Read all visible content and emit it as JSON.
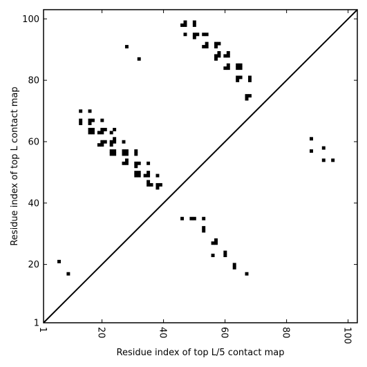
{
  "chart_data": {
    "type": "scatter",
    "xlabel": "Residue index of top L/5 contact map",
    "ylabel": "Residue index of top L contact map",
    "xlim": [
      1,
      103
    ],
    "ylim": [
      1,
      103
    ],
    "grid": false,
    "x_ticks": [
      1,
      20,
      40,
      60,
      80,
      100
    ],
    "y_ticks": [
      1,
      20,
      40,
      60,
      80,
      100
    ],
    "diagonal": true,
    "marker_color": "#000000",
    "series": [
      {
        "values": [
          [
            46,
            98
          ],
          [
            47,
            98
          ],
          [
            47,
            99
          ],
          [
            50,
            98
          ],
          [
            50,
            99
          ],
          [
            47,
            95
          ],
          [
            50,
            94
          ],
          [
            50,
            95
          ],
          [
            51,
            95
          ],
          [
            53,
            95
          ],
          [
            54,
            95
          ],
          [
            53,
            91
          ],
          [
            54,
            91
          ],
          [
            54,
            92
          ],
          [
            57,
            91
          ],
          [
            57,
            92
          ],
          [
            58,
            92
          ],
          [
            28,
            91
          ],
          [
            32,
            87
          ],
          [
            57,
            87
          ],
          [
            57,
            88
          ],
          [
            58,
            88
          ],
          [
            58,
            89
          ],
          [
            60,
            88
          ],
          [
            61,
            88
          ],
          [
            61,
            89
          ],
          [
            64,
            84
          ],
          [
            64,
            85
          ],
          [
            65,
            84
          ],
          [
            65,
            85
          ],
          [
            60,
            84
          ],
          [
            61,
            84
          ],
          [
            61,
            85
          ],
          [
            64,
            80
          ],
          [
            64,
            81
          ],
          [
            65,
            81
          ],
          [
            68,
            80
          ],
          [
            68,
            81
          ],
          [
            67,
            74
          ],
          [
            67,
            75
          ],
          [
            68,
            75
          ],
          [
            13,
            70
          ],
          [
            16,
            70
          ],
          [
            13,
            66
          ],
          [
            13,
            67
          ],
          [
            16,
            66
          ],
          [
            16,
            67
          ],
          [
            17,
            67
          ],
          [
            16,
            63
          ],
          [
            16,
            64
          ],
          [
            17,
            63
          ],
          [
            17,
            64
          ],
          [
            20,
            67
          ],
          [
            19,
            63
          ],
          [
            20,
            63
          ],
          [
            20,
            64
          ],
          [
            21,
            64
          ],
          [
            23,
            63
          ],
          [
            24,
            64
          ],
          [
            19,
            59
          ],
          [
            20,
            59
          ],
          [
            20,
            60
          ],
          [
            21,
            60
          ],
          [
            23,
            59
          ],
          [
            23,
            60
          ],
          [
            24,
            60
          ],
          [
            24,
            61
          ],
          [
            23,
            56
          ],
          [
            23,
            57
          ],
          [
            24,
            56
          ],
          [
            24,
            57
          ],
          [
            27,
            60
          ],
          [
            27,
            56
          ],
          [
            27,
            57
          ],
          [
            28,
            56
          ],
          [
            28,
            57
          ],
          [
            31,
            56
          ],
          [
            31,
            57
          ],
          [
            27,
            53
          ],
          [
            28,
            53
          ],
          [
            28,
            54
          ],
          [
            31,
            52
          ],
          [
            31,
            53
          ],
          [
            32,
            53
          ],
          [
            35,
            53
          ],
          [
            31,
            49
          ],
          [
            31,
            50
          ],
          [
            32,
            49
          ],
          [
            32,
            50
          ],
          [
            34,
            49
          ],
          [
            35,
            49
          ],
          [
            35,
            50
          ],
          [
            38,
            49
          ],
          [
            35,
            46
          ],
          [
            35,
            47
          ],
          [
            36,
            46
          ],
          [
            38,
            45
          ],
          [
            38,
            46
          ],
          [
            39,
            46
          ],
          [
            88,
            61
          ],
          [
            88,
            57
          ],
          [
            92,
            58
          ],
          [
            92,
            54
          ],
          [
            95,
            54
          ],
          [
            46,
            35
          ],
          [
            49,
            35
          ],
          [
            50,
            35
          ],
          [
            53,
            35
          ],
          [
            53,
            31
          ],
          [
            53,
            32
          ],
          [
            56,
            27
          ],
          [
            57,
            27
          ],
          [
            57,
            28
          ],
          [
            60,
            23
          ],
          [
            60,
            24
          ],
          [
            56,
            23
          ],
          [
            63,
            19
          ],
          [
            63,
            20
          ],
          [
            67,
            17
          ],
          [
            6,
            21
          ],
          [
            9,
            17
          ]
        ]
      }
    ]
  }
}
